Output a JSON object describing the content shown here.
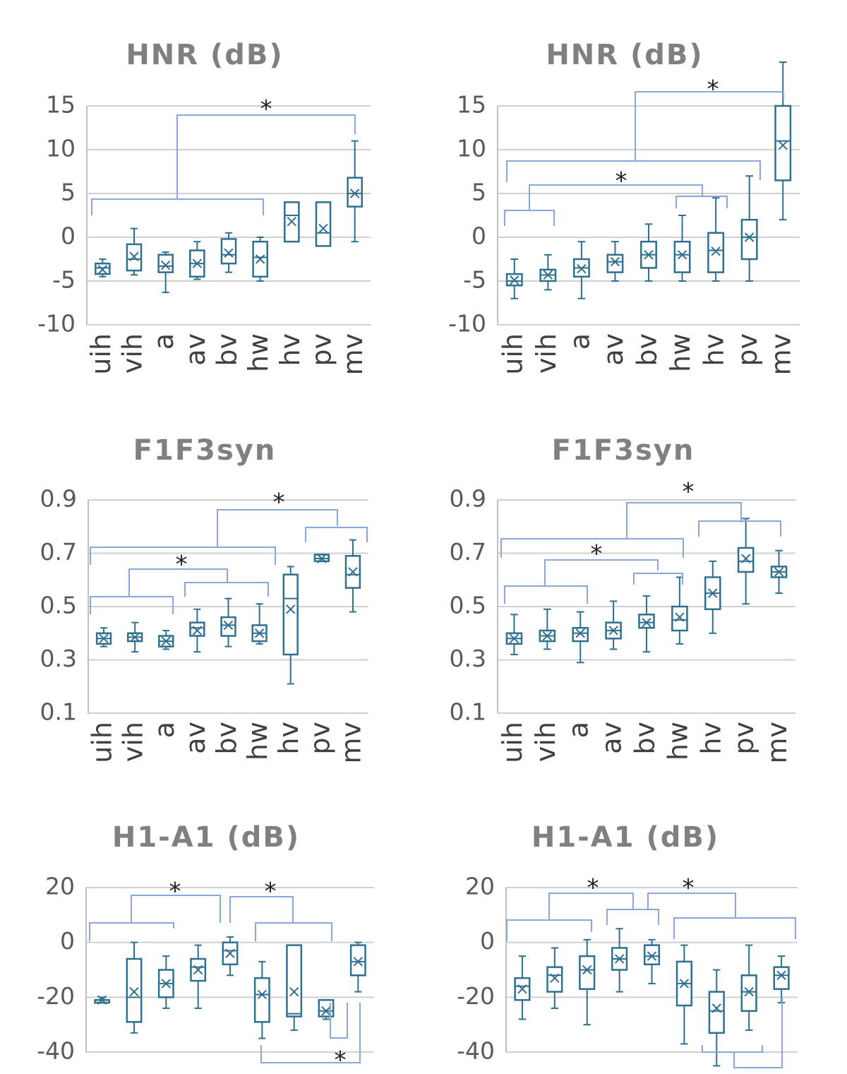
{
  "chart_data": [
    {
      "type": "box",
      "title": "HNR (dB)",
      "color": "#2f6f8f",
      "grid": true,
      "categories": [
        "uih",
        "vih",
        "a",
        "av",
        "bv",
        "hw",
        "hv",
        "pv",
        "mv"
      ],
      "ylim": [
        -10,
        15
      ],
      "yticks": [
        15,
        10,
        5,
        0,
        -5,
        -10
      ],
      "boxes": [
        {
          "low": -4.5,
          "q1": -4.2,
          "median": -3.5,
          "q3": -3,
          "high": -2.5,
          "mean": -3.7
        },
        {
          "low": -4.3,
          "q1": -3.8,
          "median": -2.5,
          "q3": -0.8,
          "high": 1,
          "mean": -2.2
        },
        {
          "low": -6.3,
          "q1": -4,
          "median": -3.3,
          "q3": -2,
          "high": -1.7,
          "mean": -3.2
        },
        {
          "low": -4.8,
          "q1": -4.5,
          "median": -3,
          "q3": -1.5,
          "high": -0.5,
          "mean": -3
        },
        {
          "low": -4,
          "q1": -3,
          "median": -2,
          "q3": -0.2,
          "high": 0.5,
          "mean": -1.8
        },
        {
          "low": -5,
          "q1": -4.5,
          "median": -2.3,
          "q3": -0.5,
          "high": 0,
          "mean": -2.5
        },
        {
          "low": -0.5,
          "q1": -0.5,
          "median": 2.5,
          "q3": 4,
          "high": 4,
          "mean": 1.8
        },
        {
          "low": -1,
          "q1": -1,
          "median": 0.5,
          "q3": 4,
          "high": 4,
          "mean": 1
        },
        {
          "low": -0.5,
          "q1": 3.5,
          "median": 5,
          "q3": 6.8,
          "high": 11,
          "mean": 5
        }
      ],
      "annotations": [
        "*"
      ]
    },
    {
      "type": "box",
      "title": "HNR (dB)",
      "color": "#2f6f8f",
      "grid": true,
      "categories": [
        "uih",
        "vih",
        "a",
        "av",
        "bv",
        "hw",
        "hv",
        "pv",
        "mv"
      ],
      "ylim": [
        -10,
        15
      ],
      "yticks": [
        15,
        10,
        5,
        0,
        -5,
        -10
      ],
      "boxes": [
        {
          "low": -7,
          "q1": -5.5,
          "median": -5,
          "q3": -4.2,
          "high": -2.5,
          "mean": -4.9
        },
        {
          "low": -6,
          "q1": -5,
          "median": -4.3,
          "q3": -3.7,
          "high": -2,
          "mean": -4.3
        },
        {
          "low": -7,
          "q1": -4.5,
          "median": -3.5,
          "q3": -2.5,
          "high": -0.5,
          "mean": -3.6
        },
        {
          "low": -5,
          "q1": -4,
          "median": -2.8,
          "q3": -2,
          "high": -0.5,
          "mean": -2.8
        },
        {
          "low": -5,
          "q1": -3.5,
          "median": -2,
          "q3": -0.5,
          "high": 1.5,
          "mean": -2
        },
        {
          "low": -5,
          "q1": -4,
          "median": -2,
          "q3": -0.5,
          "high": 2.5,
          "mean": -2
        },
        {
          "low": -5,
          "q1": -4,
          "median": -1.5,
          "q3": 0.5,
          "high": 4.5,
          "mean": -1.6
        },
        {
          "low": -5,
          "q1": -2.5,
          "median": 0,
          "q3": 2,
          "high": 7,
          "mean": 0
        },
        {
          "low": 2,
          "q1": 6.5,
          "median": 11,
          "q3": 15,
          "high": 20,
          "mean": 10.5
        }
      ],
      "annotations": [
        "*",
        "*"
      ]
    },
    {
      "type": "box",
      "title": "F1F3syn",
      "color": "#2f6f8f",
      "grid": true,
      "categories": [
        "uih",
        "vih",
        "a",
        "av",
        "bv",
        "hw",
        "hv",
        "pv",
        "mv"
      ],
      "ylim": [
        0.1,
        0.9
      ],
      "yticks": [
        0.9,
        0.7,
        0.5,
        0.3,
        0.1
      ],
      "boxes": [
        {
          "low": 0.35,
          "q1": 0.36,
          "median": 0.38,
          "q3": 0.4,
          "high": 0.42,
          "mean": 0.38
        },
        {
          "low": 0.33,
          "q1": 0.37,
          "median": 0.385,
          "q3": 0.4,
          "high": 0.44,
          "mean": 0.385
        },
        {
          "low": 0.34,
          "q1": 0.35,
          "median": 0.37,
          "q3": 0.39,
          "high": 0.41,
          "mean": 0.37
        },
        {
          "low": 0.33,
          "q1": 0.39,
          "median": 0.42,
          "q3": 0.44,
          "high": 0.49,
          "mean": 0.41
        },
        {
          "low": 0.35,
          "q1": 0.39,
          "median": 0.43,
          "q3": 0.46,
          "high": 0.53,
          "mean": 0.43
        },
        {
          "low": 0.36,
          "q1": 0.37,
          "median": 0.4,
          "q3": 0.43,
          "high": 0.51,
          "mean": 0.4
        },
        {
          "low": 0.21,
          "q1": 0.32,
          "median": 0.53,
          "q3": 0.62,
          "high": 0.65,
          "mean": 0.49
        },
        {
          "low": 0.67,
          "q1": 0.67,
          "median": 0.68,
          "q3": 0.695,
          "high": 0.695,
          "mean": 0.68
        },
        {
          "low": 0.48,
          "q1": 0.57,
          "median": 0.62,
          "q3": 0.69,
          "high": 0.75,
          "mean": 0.63
        }
      ],
      "annotations": [
        "*",
        "*"
      ]
    },
    {
      "type": "box",
      "title": "F1F3syn",
      "color": "#2f6f8f",
      "grid": true,
      "categories": [
        "uih",
        "vih",
        "a",
        "av",
        "bv",
        "hw",
        "hv",
        "pv",
        "mv"
      ],
      "ylim": [
        0.1,
        0.9
      ],
      "yticks": [
        0.9,
        0.7,
        0.5,
        0.3,
        0.1
      ],
      "boxes": [
        {
          "low": 0.32,
          "q1": 0.36,
          "median": 0.38,
          "q3": 0.4,
          "high": 0.47,
          "mean": 0.38
        },
        {
          "low": 0.34,
          "q1": 0.37,
          "median": 0.39,
          "q3": 0.41,
          "high": 0.49,
          "mean": 0.39
        },
        {
          "low": 0.29,
          "q1": 0.37,
          "median": 0.4,
          "q3": 0.42,
          "high": 0.48,
          "mean": 0.4
        },
        {
          "low": 0.34,
          "q1": 0.38,
          "median": 0.41,
          "q3": 0.44,
          "high": 0.52,
          "mean": 0.41
        },
        {
          "low": 0.33,
          "q1": 0.42,
          "median": 0.44,
          "q3": 0.47,
          "high": 0.54,
          "mean": 0.44
        },
        {
          "low": 0.36,
          "q1": 0.41,
          "median": 0.45,
          "q3": 0.5,
          "high": 0.61,
          "mean": 0.46
        },
        {
          "low": 0.4,
          "q1": 0.49,
          "median": 0.55,
          "q3": 0.61,
          "high": 0.67,
          "mean": 0.55
        },
        {
          "low": 0.51,
          "q1": 0.63,
          "median": 0.67,
          "q3": 0.72,
          "high": 0.83,
          "mean": 0.68
        },
        {
          "low": 0.55,
          "q1": 0.61,
          "median": 0.63,
          "q3": 0.65,
          "high": 0.71,
          "mean": 0.63
        }
      ],
      "annotations": [
        "*",
        "*"
      ]
    },
    {
      "type": "box",
      "title": "H1-A1 (dB)",
      "color": "#2f6f8f",
      "grid": true,
      "ylim": [
        -40,
        20
      ],
      "yticks": [
        20,
        0,
        -20,
        -40
      ],
      "boxes": [
        {
          "low": -22,
          "q1": -22,
          "median": -21,
          "q3": -21,
          "high": -20,
          "mean": -21
        },
        {
          "low": -33,
          "q1": -29,
          "median": -20,
          "q3": -6,
          "high": 0,
          "mean": -18
        },
        {
          "low": -24,
          "q1": -20,
          "median": -15,
          "q3": -10,
          "high": -5,
          "mean": -15
        },
        {
          "low": -24,
          "q1": -14,
          "median": -9,
          "q3": -6,
          "high": -1,
          "mean": -10
        },
        {
          "low": -12,
          "q1": -8,
          "median": -3,
          "q3": 0,
          "high": 2,
          "mean": -4
        },
        {
          "low": -35,
          "q1": -29,
          "median": -19,
          "q3": -13,
          "high": -7,
          "mean": -19
        },
        {
          "low": -32,
          "q1": -27,
          "median": -26,
          "q3": -1,
          "high": -1,
          "mean": -18
        },
        {
          "low": -28,
          "q1": -27,
          "median": -25,
          "q3": -21,
          "high": -21,
          "mean": -25
        },
        {
          "low": -18,
          "q1": -12,
          "median": -7,
          "q3": -1,
          "high": 0,
          "mean": -7
        }
      ],
      "annotations": [
        "*",
        "*",
        "*"
      ]
    },
    {
      "type": "box",
      "title": "H1-A1 (dB)",
      "color": "#2f6f8f",
      "grid": true,
      "ylim": [
        -40,
        20
      ],
      "yticks": [
        20,
        0,
        -20,
        -40
      ],
      "boxes": [
        {
          "low": -28,
          "q1": -21,
          "median": -16,
          "q3": -13,
          "high": -5,
          "mean": -17
        },
        {
          "low": -24,
          "q1": -18,
          "median": -12,
          "q3": -9,
          "high": -2,
          "mean": -13
        },
        {
          "low": -30,
          "q1": -17,
          "median": -10,
          "q3": -5,
          "high": 1,
          "mean": -10
        },
        {
          "low": -18,
          "q1": -10,
          "median": -6,
          "q3": -2,
          "high": 5,
          "mean": -6
        },
        {
          "low": -15,
          "q1": -8,
          "median": -5,
          "q3": -1,
          "high": 1,
          "mean": -5
        },
        {
          "low": -37,
          "q1": -23,
          "median": -15,
          "q3": -7,
          "high": -1,
          "mean": -15
        },
        {
          "low": -45,
          "q1": -33,
          "median": -25,
          "q3": -18,
          "high": -10,
          "mean": -24
        },
        {
          "low": -32,
          "q1": -25,
          "median": -18,
          "q3": -12,
          "high": -1,
          "mean": -18
        },
        {
          "low": -22,
          "q1": -17,
          "median": -12,
          "q3": -9,
          "high": -5,
          "mean": -12
        }
      ],
      "annotations": [
        "*",
        "*"
      ]
    }
  ]
}
